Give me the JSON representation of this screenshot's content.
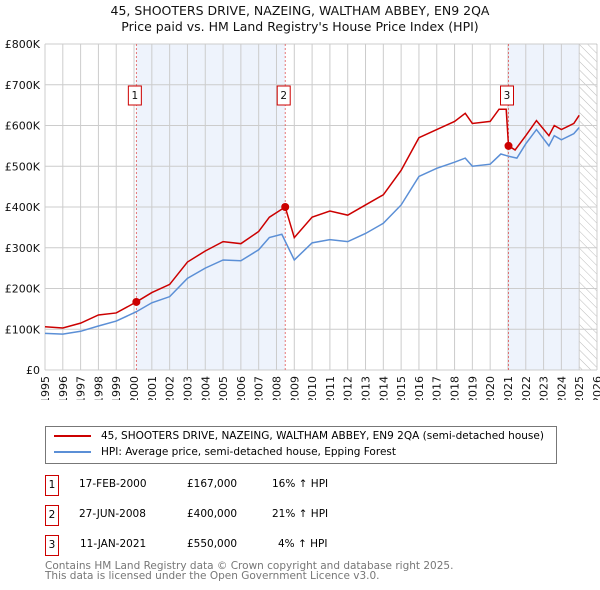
{
  "header": {
    "title": "45, SHOOTERS DRIVE, NAZEING, WALTHAM ABBEY, EN9 2QA",
    "subtitle": "Price paid vs. HM Land Registry's House Price Index (HPI)"
  },
  "chart_data": {
    "type": "line",
    "title": "45, SHOOTERS DRIVE, NAZEING, WALTHAM ABBEY, EN9 2QA",
    "subtitle": "Price paid vs. HM Land Registry's House Price Index (HPI)",
    "xlim": [
      1995,
      2026
    ],
    "ylim": [
      0,
      800000
    ],
    "xticks": [
      "1995",
      "1996",
      "1997",
      "1998",
      "1999",
      "2000",
      "2001",
      "2002",
      "2003",
      "2004",
      "2005",
      "2006",
      "2007",
      "2008",
      "2009",
      "2010",
      "2011",
      "2012",
      "2013",
      "2014",
      "2015",
      "2016",
      "2017",
      "2018",
      "2019",
      "2020",
      "2021",
      "2022",
      "2023",
      "2024",
      "2025",
      "2026"
    ],
    "yticks": [
      {
        "v": 0,
        "label": "£0"
      },
      {
        "v": 100000,
        "label": "£100K"
      },
      {
        "v": 200000,
        "label": "£200K"
      },
      {
        "v": 300000,
        "label": "£300K"
      },
      {
        "v": 400000,
        "label": "£400K"
      },
      {
        "v": 500000,
        "label": "£500K"
      },
      {
        "v": 600000,
        "label": "£600K"
      },
      {
        "v": 700000,
        "label": "£700K"
      },
      {
        "v": 800000,
        "label": "£800K"
      }
    ],
    "grid": true,
    "shaded_periods": [
      [
        2000.13,
        2008.49
      ],
      [
        2021.03,
        2025.0
      ]
    ],
    "forecast_hatch_from": 2025.0,
    "series": [
      {
        "name": "45, SHOOTERS DRIVE, NAZEING, WALTHAM ABBEY, EN9 2QA (semi-detached house)",
        "color": "#cc0000",
        "x": [
          1995,
          1996,
          1997,
          1998,
          1999,
          2000.13,
          2001,
          2002,
          2003,
          2004,
          2005,
          2006,
          2007,
          2007.6,
          2008.49,
          2009,
          2010,
          2011,
          2012,
          2013,
          2014,
          2015,
          2016,
          2017,
          2018,
          2018.6,
          2019,
          2020,
          2020.5,
          2020.9,
          2021.03,
          2021.4,
          2022,
          2022.6,
          2023.3,
          2023.6,
          2024,
          2024.7,
          2025
        ],
        "y": [
          106000,
          103000,
          115000,
          135000,
          140000,
          167000,
          190000,
          210000,
          265000,
          292000,
          315000,
          310000,
          340000,
          375000,
          400000,
          325000,
          375000,
          390000,
          380000,
          405000,
          430000,
          490000,
          570000,
          590000,
          610000,
          630000,
          605000,
          610000,
          640000,
          640000,
          550000,
          540000,
          575000,
          612000,
          575000,
          600000,
          590000,
          605000,
          625000
        ]
      },
      {
        "name": "HPI: Average price, semi-detached house, Epping Forest",
        "color": "#5b8fd6",
        "x": [
          1995,
          1996,
          1997,
          1998,
          1999,
          2000.13,
          2001,
          2002,
          2003,
          2004,
          2005,
          2006,
          2007,
          2007.6,
          2008.3,
          2009,
          2010,
          2011,
          2012,
          2013,
          2014,
          2015,
          2016,
          2017,
          2018,
          2018.6,
          2019,
          2020,
          2020.6,
          2021,
          2021.5,
          2022,
          2022.6,
          2023.3,
          2023.6,
          2024,
          2024.7,
          2025
        ],
        "y": [
          90000,
          88000,
          95000,
          108000,
          120000,
          143000,
          165000,
          180000,
          225000,
          250000,
          270000,
          268000,
          295000,
          325000,
          333000,
          270000,
          312000,
          320000,
          315000,
          335000,
          360000,
          405000,
          475000,
          495000,
          510000,
          520000,
          500000,
          505000,
          530000,
          525000,
          520000,
          555000,
          590000,
          550000,
          575000,
          565000,
          580000,
          595000
        ]
      }
    ],
    "markers": [
      {
        "label": "1",
        "x": 2000.13,
        "y": 167000
      },
      {
        "label": "2",
        "x": 2008.49,
        "y": 400000
      },
      {
        "label": "3",
        "x": 2021.03,
        "y": 550000
      }
    ],
    "legend_position": "below"
  },
  "legend": {
    "items": [
      {
        "label": "45, SHOOTERS DRIVE, NAZEING, WALTHAM ABBEY, EN9 2QA (semi-detached house)",
        "color": "#cc0000"
      },
      {
        "label": "HPI: Average price, semi-detached house, Epping Forest",
        "color": "#5b8fd6"
      }
    ]
  },
  "transactions": [
    {
      "num": "1",
      "date": "17-FEB-2000",
      "price": "£167,000",
      "hpi": "16% ↑ HPI"
    },
    {
      "num": "2",
      "date": "27-JUN-2008",
      "price": "£400,000",
      "hpi": "21% ↑ HPI"
    },
    {
      "num": "3",
      "date": "11-JAN-2021",
      "price": "£550,000",
      "hpi": "4% ↑ HPI"
    }
  ],
  "footer": {
    "line1": "Contains HM Land Registry data © Crown copyright and database right 2025.",
    "line2": "This data is licensed under the Open Government Licence v3.0."
  }
}
